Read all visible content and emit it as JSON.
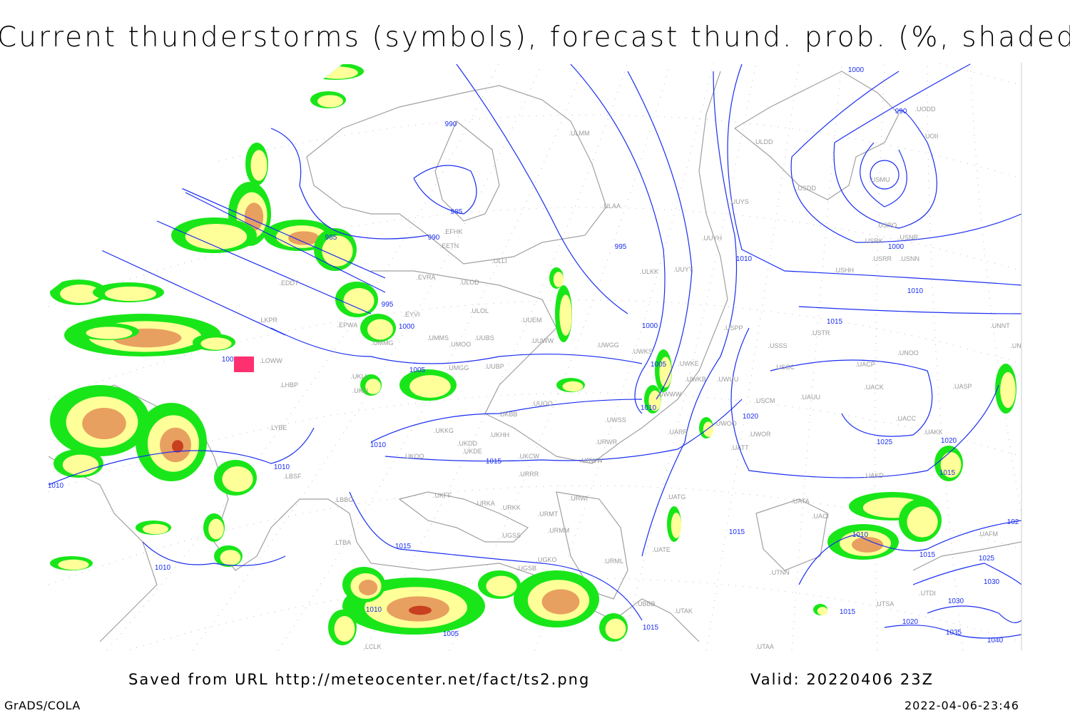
{
  "title": "Current thunderstorms (symbols), forecast thund. prob. (%, shaded)",
  "footer": {
    "saved_from": "Saved from URL http://meteocenter.net/fact/ts2.png",
    "valid": "Valid: 20220406 23Z",
    "software": "GrADS/COLA",
    "timestamp": "2022-04-06-23:46"
  },
  "colors": {
    "isobar": "#1a2ef0",
    "coastline": "#a0a0a0",
    "prob_low": "#19e619",
    "prob_mid": "#ffff99",
    "prob_high": "#e8a060",
    "prob_top": "#c84020",
    "thunderstorm_symbol": "#ff3070"
  },
  "isobar_labels": [
    "1000",
    "990",
    "990",
    "985",
    "990",
    "985",
    "995",
    "995",
    "1000",
    "1000",
    "1005",
    "1005",
    "1005",
    "1010",
    "1010",
    "1010",
    "1000",
    "1015",
    "1020",
    "1025",
    "1020",
    "1015",
    "1010",
    "1015",
    "1010",
    "1010",
    "1015",
    "1010",
    "1010",
    "1005",
    "1015",
    "1015",
    "1010",
    "1015",
    "1025",
    "1030",
    "1030",
    "1020",
    "1035",
    "1040",
    "1015",
    "102"
  ],
  "stations": [
    "ULMM",
    "ULAA",
    "ULLI",
    "EFHK",
    "EETN",
    "EVRA",
    "ULOD",
    "ULOL",
    "UUEM",
    "UMMS",
    "UMOO",
    "UUBS",
    "UUWW",
    "UWGG",
    "UWKS",
    "UWKE",
    "UWKB",
    "UWUU",
    "UMGG",
    "UUBP",
    "UUOO",
    "UWSS",
    "ULKK",
    "UUYY",
    "UUYH",
    "UUYS",
    "ULDD",
    "USDD",
    "USMU",
    "UOII",
    "UODD",
    "USRO",
    "USRK",
    "USNR",
    "USRR",
    "USNN",
    "USHH",
    "USPP",
    "USTR",
    "USSS",
    "UNOO",
    "UNNT",
    "UNBB",
    "USCC",
    "UACP",
    "UACK",
    "UASP",
    "USCM",
    "UAUU",
    "UACC",
    "UAKK",
    "UWOO",
    "UWOR",
    "UATT",
    "UARR",
    "URWW",
    "URWR",
    "UKCW",
    "UKDE",
    "UKOO",
    "UKHH",
    "UKKG",
    "UKDD",
    "UKBB",
    "UKLL",
    "UKLI",
    "LHBP",
    "LYBE",
    "LBSF",
    "LBBG",
    "LTBA",
    "UKFF",
    "URKA",
    "URKK",
    "URMT",
    "URWI",
    "URRR",
    "URMM",
    "UGSS",
    "UBBB",
    "UATG",
    "UATE",
    "UTAK",
    "UTAA",
    "UTNN",
    "UATA",
    "UACI",
    "UAKD",
    "UAFM",
    "UGSB",
    "UGKO",
    "LCLK",
    "LKPR",
    "EPWA",
    "EYVI",
    "UMMG",
    "LOWW",
    "EDDT",
    "UWWW",
    "URML",
    "UTSA",
    "UTDI"
  ]
}
